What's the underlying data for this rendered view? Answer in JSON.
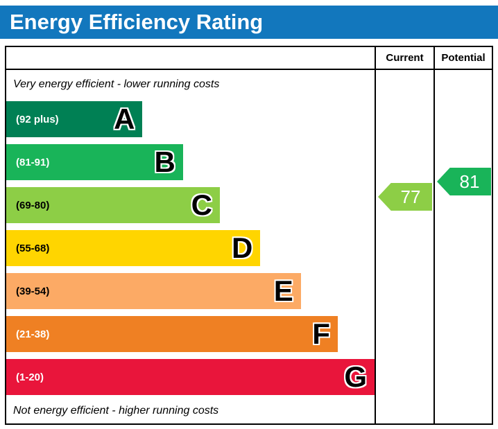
{
  "title": "Energy Efficiency Rating",
  "header": {
    "current": "Current",
    "potential": "Potential"
  },
  "notes": {
    "top": "Very energy efficient - lower running costs",
    "bottom": "Not energy efficient - higher running costs"
  },
  "colors": {
    "title_bar": "#1277bd",
    "title_text": "#ffffff",
    "border": "#000000",
    "background": "#ffffff"
  },
  "chart_data": {
    "type": "bar",
    "orientation": "horizontal",
    "title": "Energy Efficiency Rating",
    "categories": [
      "A",
      "B",
      "C",
      "D",
      "E",
      "F",
      "G"
    ],
    "bands": [
      {
        "letter": "A",
        "range_label": "(92 plus)",
        "min": 92,
        "max": 100,
        "color": "#008054",
        "label_color": "#ffffff",
        "width_pct": 37
      },
      {
        "letter": "B",
        "range_label": "(81-91)",
        "min": 81,
        "max": 91,
        "color": "#19b459",
        "label_color": "#ffffff",
        "width_pct": 48
      },
      {
        "letter": "C",
        "range_label": "(69-80)",
        "min": 69,
        "max": 80,
        "color": "#8dce46",
        "label_color": "#000000",
        "width_pct": 58
      },
      {
        "letter": "D",
        "range_label": "(55-68)",
        "min": 55,
        "max": 68,
        "color": "#ffd500",
        "label_color": "#000000",
        "width_pct": 69
      },
      {
        "letter": "E",
        "range_label": "(39-54)",
        "min": 39,
        "max": 54,
        "color": "#fcaa65",
        "label_color": "#000000",
        "width_pct": 80
      },
      {
        "letter": "F",
        "range_label": "(21-38)",
        "min": 21,
        "max": 38,
        "color": "#ef8023",
        "label_color": "#ffffff",
        "width_pct": 90
      },
      {
        "letter": "G",
        "range_label": "(1-20)",
        "min": 1,
        "max": 20,
        "color": "#e9153b",
        "label_color": "#ffffff",
        "width_pct": 100
      }
    ],
    "markers": {
      "current": {
        "column": "Current",
        "value": 77,
        "band": "C",
        "color": "#8dce46"
      },
      "potential": {
        "column": "Potential",
        "value": 81,
        "band": "B",
        "color": "#19b459"
      }
    }
  }
}
